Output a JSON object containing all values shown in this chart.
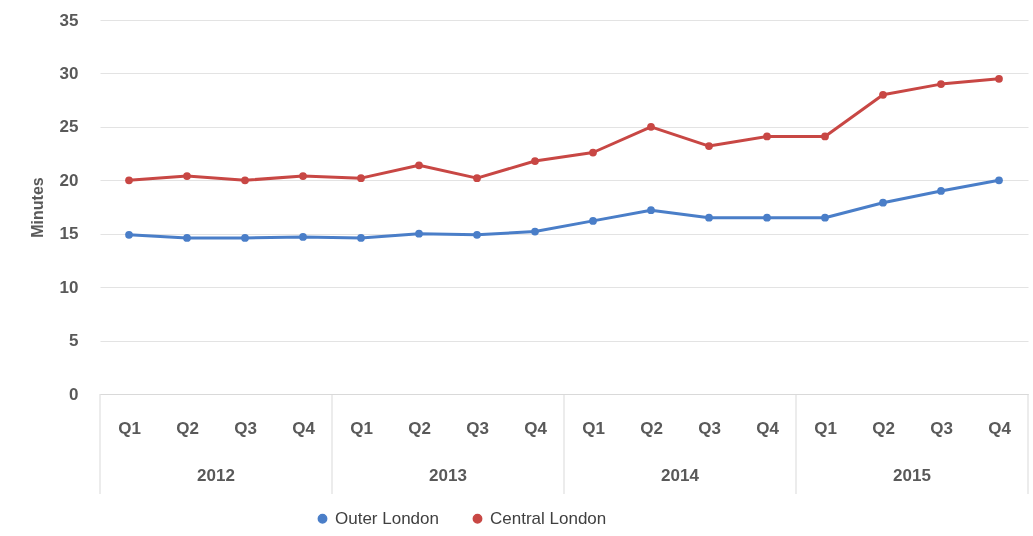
{
  "chart_data": {
    "type": "line",
    "ylabel": "Minutes",
    "categories": [
      "Q1",
      "Q2",
      "Q3",
      "Q4",
      "Q1",
      "Q2",
      "Q3",
      "Q4",
      "Q1",
      "Q2",
      "Q3",
      "Q4",
      "Q1",
      "Q2",
      "Q3",
      "Q4"
    ],
    "annotations": [
      "2012",
      "2013",
      "2014",
      "2015"
    ],
    "series": [
      {
        "name": "Outer London",
        "color": "#4a7ec8",
        "values": [
          14.9,
          14.6,
          14.6,
          14.7,
          14.6,
          15.0,
          14.9,
          15.2,
          16.2,
          17.2,
          16.5,
          16.5,
          16.5,
          17.9,
          19.0,
          20.0
        ]
      },
      {
        "name": "Central London",
        "color": "#c84744",
        "values": [
          20.0,
          20.4,
          20.0,
          20.4,
          20.2,
          21.4,
          20.2,
          21.8,
          22.6,
          25.0,
          23.2,
          24.1,
          24.1,
          28.0,
          29.0,
          29.5
        ]
      }
    ],
    "ylim": [
      0,
      35
    ],
    "yticks": [
      0,
      5,
      10,
      15,
      20,
      25,
      30,
      35
    ],
    "grid": "y",
    "legend": "bottom",
    "marker": "circle",
    "line_style": "solid"
  }
}
